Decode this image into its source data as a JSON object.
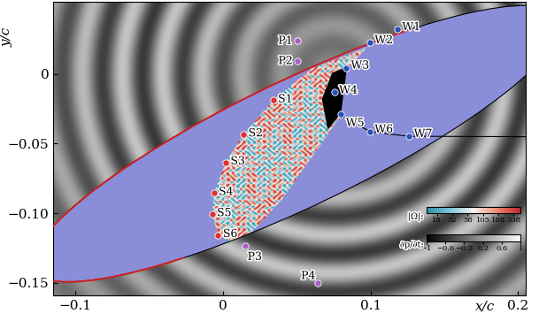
{
  "chart_data": {
    "type": "scatter",
    "x_label": "x/c",
    "y_label": "y/c",
    "xlim": [
      -0.115,
      0.205
    ],
    "ylim": [
      -0.159,
      0.052
    ],
    "xticks": [
      {
        "value": -0.1,
        "label": "−0.1"
      },
      0,
      0.1,
      0.2
    ],
    "yticks": [
      0,
      {
        "value": -0.05,
        "label": "−0.05"
      },
      {
        "value": -0.1,
        "label": "−0.10"
      },
      {
        "value": -0.15,
        "label": "−0.15"
      }
    ],
    "points": [
      {
        "label": "P1",
        "x": 0.0506,
        "y": 0.0239,
        "color": "#a85cc8"
      },
      {
        "label": "P2",
        "x": 0.0506,
        "y": 0.0094,
        "color": "#a85cc8"
      },
      {
        "label": "P3",
        "x": 0.0149,
        "y": -0.1233,
        "color": "#a85cc8"
      },
      {
        "label": "P4",
        "x": 0.0644,
        "y": -0.1503,
        "color": "#a85cc8"
      },
      {
        "label": "S1",
        "x": 0.0339,
        "y": -0.0189,
        "color": "#e03030"
      },
      {
        "label": "S2",
        "x": 0.0138,
        "y": -0.0434,
        "color": "#e03030"
      },
      {
        "label": "S3",
        "x": 0.0017,
        "y": -0.0635,
        "color": "#e03030"
      },
      {
        "label": "S4",
        "x": -0.0063,
        "y": -0.0855,
        "color": "#e03030"
      },
      {
        "label": "S5",
        "x": -0.0075,
        "y": -0.1006,
        "color": "#e03030"
      },
      {
        "label": "S6",
        "x": -0.0034,
        "y": -0.1157,
        "color": "#e03030"
      },
      {
        "label": "W1",
        "x": 0.118,
        "y": 0.032,
        "color": "#2a4fb8"
      },
      {
        "label": "W2",
        "x": 0.0994,
        "y": 0.0226,
        "color": "#2a4fb8"
      },
      {
        "label": "W3",
        "x": 0.0833,
        "y": 0.0044,
        "color": "#2a4fb8"
      },
      {
        "label": "W4",
        "x": 0.0753,
        "y": -0.0126,
        "color": "#2a4fb8"
      },
      {
        "label": "W5",
        "x": 0.0799,
        "y": -0.029,
        "color": "#2a4fb8"
      },
      {
        "label": "W6",
        "x": 0.0994,
        "y": -0.0415,
        "color": "#2a4fb8"
      },
      {
        "label": "W7",
        "x": 0.126,
        "y": -0.0447,
        "color": "#2a4fb8"
      }
    ],
    "colorbars": [
      {
        "label": "|Ω|:",
        "range": [
          12,
          450
        ],
        "log": true,
        "ticks": [
          18,
          32,
          58,
          105,
          188,
          338
        ]
      },
      {
        "label": "∂p/∂t:",
        "range": [
          -1,
          1
        ],
        "ticks": [
          {
            "value": -1,
            "label": "−1"
          },
          {
            "value": -0.6,
            "label": "−0.6"
          },
          {
            "value": -0.2,
            "label": "−0.2"
          },
          0.2,
          0.6,
          1
        ]
      }
    ]
  }
}
